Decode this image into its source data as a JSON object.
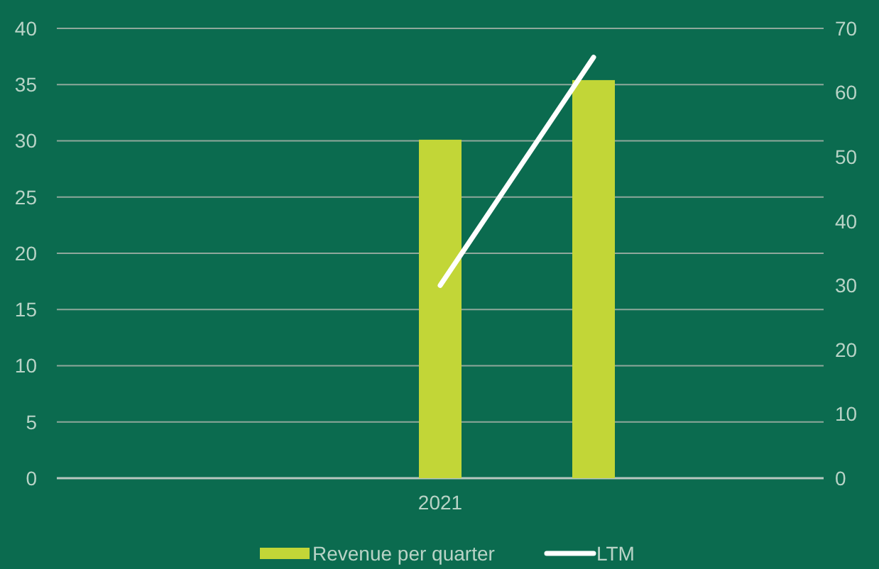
{
  "chart_data": {
    "type": "bar",
    "categories": [
      null,
      null,
      "2021",
      null,
      null
    ],
    "series": [
      {
        "name": "Revenue per quarter",
        "color": "#c2d637",
        "values": [
          null,
          null,
          30.1,
          35.4,
          null
        ]
      },
      {
        "name": "LTM",
        "type": "line",
        "axis": "y2",
        "color": "#ffffff",
        "values": [
          null,
          null,
          30,
          65.5,
          null
        ]
      }
    ],
    "ylim": [
      0,
      40
    ],
    "yticks": [
      0,
      5,
      10,
      15,
      20,
      25,
      30,
      35,
      40
    ],
    "y2lim": [
      0,
      70
    ],
    "y2ticks": [
      0,
      10,
      20,
      30,
      40,
      50,
      60,
      70
    ],
    "grid": "y",
    "legend": "bottom"
  }
}
